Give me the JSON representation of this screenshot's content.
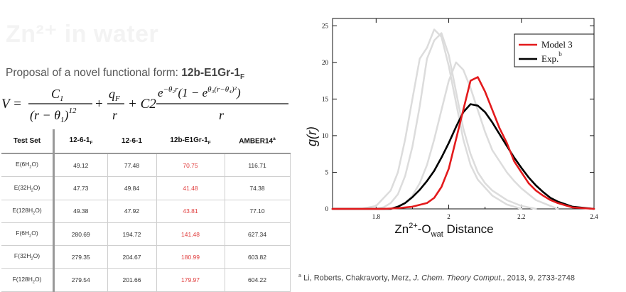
{
  "slide": {
    "title": "Zn²⁺ in water"
  },
  "proposal": {
    "prefix": "Proposal of a novel functional form: ",
    "name": "12b-E1Gr-1",
    "name_sub": "F"
  },
  "equation": {
    "lhs": "V =",
    "t1_num": "C",
    "t1_num_sub": "1",
    "t1_den": "(r − θ",
    "t1_den_sub": "1",
    "t1_den_end": ")",
    "t1_den_exp": "12",
    "plus1": "+",
    "t2_num": "q",
    "t2_num_sub": "F",
    "t2_den": "r",
    "plus2": "+ C2",
    "t3_num_a": "e",
    "t3_num_a_exp": "−θ₂r",
    "t3_num_b": "(1 − e",
    "t3_num_b_exp": "θ₃(r−θ₄)²",
    "t3_num_c": ")",
    "t3_den": "r"
  },
  "table": {
    "headers": [
      "Test Set",
      "12-6-1",
      "12-6-1",
      "12b-E1Gr-1",
      "AMBER14"
    ],
    "header_subs": [
      "",
      "F",
      "",
      "F",
      ""
    ],
    "header_sups": [
      "",
      "",
      "",
      "",
      "a"
    ],
    "rows": [
      {
        "set": "E(6H",
        "sub": "2",
        "tail": "O)",
        "v": [
          "49.12",
          "77.48",
          "70.75",
          "116.71"
        ]
      },
      {
        "set": "E(32H",
        "sub": "2",
        "tail": "O)",
        "v": [
          "47.73",
          "49.84",
          "41.48",
          "74.38"
        ]
      },
      {
        "set": "E(128H",
        "sub": "2",
        "tail": "O)",
        "v": [
          "49.38",
          "47.92",
          "43.81",
          "77.10"
        ]
      },
      {
        "set": "F(6H",
        "sub": "2",
        "tail": "O)",
        "v": [
          "280.69",
          "194.72",
          "141.48",
          "627.34"
        ]
      },
      {
        "set": "F(32H",
        "sub": "2",
        "tail": "O)",
        "v": [
          "279.35",
          "204.67",
          "180.99",
          "603.82"
        ]
      },
      {
        "set": "F(128H",
        "sub": "2",
        "tail": "O)",
        "v": [
          "279.54",
          "201.66",
          "179.97",
          "604.22"
        ]
      }
    ]
  },
  "chart_data": {
    "type": "line",
    "xlabel_parts": {
      "a": "Zn",
      "a_sup": "2+",
      "b": "-O",
      "b_sub": "wat",
      "c": " Distance"
    },
    "ylabel_parts": {
      "a": "g(r)"
    },
    "xlim": [
      1.68,
      2.4
    ],
    "ylim": [
      0,
      26
    ],
    "xticks": [
      "1.8",
      "2",
      "2.2",
      "2.4"
    ],
    "xtick_vals": [
      1.8,
      2.0,
      2.2,
      2.4
    ],
    "yticks": [
      "0",
      "5",
      "10",
      "15",
      "20",
      "25"
    ],
    "ytick_vals": [
      0,
      5,
      10,
      15,
      20,
      25
    ],
    "legend": {
      "position": "top-right",
      "entries": [
        "Model 3",
        "Exp."
      ],
      "exp_sup": "b"
    },
    "series": [
      {
        "name": "Model 3",
        "color": "#e31a1c",
        "x": [
          1.68,
          1.82,
          1.86,
          1.9,
          1.94,
          1.96,
          1.98,
          2.0,
          2.02,
          2.04,
          2.06,
          2.08,
          2.1,
          2.12,
          2.14,
          2.16,
          2.18,
          2.2,
          2.22,
          2.24,
          2.26,
          2.28,
          2.3,
          2.34,
          2.4
        ],
        "y": [
          0,
          0,
          0.1,
          0.3,
          0.8,
          1.5,
          3.0,
          5.5,
          9.5,
          13.5,
          17.5,
          18.0,
          16.0,
          13.5,
          11.0,
          9.0,
          6.5,
          5.0,
          3.5,
          2.5,
          1.8,
          1.2,
          0.8,
          0.2,
          0
        ]
      },
      {
        "name": "Exp.",
        "color": "#000000",
        "x": [
          1.68,
          1.84,
          1.86,
          1.88,
          1.9,
          1.92,
          1.94,
          1.96,
          1.98,
          2.0,
          2.02,
          2.04,
          2.06,
          2.08,
          2.1,
          2.12,
          2.14,
          2.16,
          2.18,
          2.2,
          2.22,
          2.24,
          2.26,
          2.28,
          2.3,
          2.34,
          2.4
        ],
        "y": [
          0,
          0,
          0.3,
          0.8,
          1.6,
          2.6,
          3.8,
          5.2,
          7.0,
          9.0,
          11.2,
          13.2,
          14.3,
          14.1,
          13.2,
          11.8,
          10.2,
          8.6,
          7.0,
          5.6,
          4.3,
          3.2,
          2.3,
          1.5,
          1.0,
          0.3,
          0
        ]
      },
      {
        "name": "",
        "color": "#dcdcdc",
        "x": [
          1.68,
          1.76,
          1.8,
          1.84,
          1.86,
          1.88,
          1.9,
          1.92,
          1.94,
          1.96,
          1.98,
          2.0,
          2.02,
          2.04,
          2.06,
          2.08,
          2.12,
          2.16,
          2.2
        ],
        "y": [
          0,
          0,
          0.4,
          2.5,
          5.0,
          9.5,
          15.0,
          20.5,
          22.0,
          24.5,
          23.5,
          19.5,
          14.5,
          9.5,
          6.0,
          4.0,
          1.8,
          0.6,
          0
        ]
      },
      {
        "name": "",
        "color": "#dcdcdc",
        "x": [
          1.68,
          1.8,
          1.82,
          1.84,
          1.86,
          1.88,
          1.9,
          1.92,
          1.94,
          1.96,
          1.98,
          2.0,
          2.02,
          2.04,
          2.06,
          2.08,
          2.1,
          2.12,
          2.16,
          2.2,
          2.24
        ],
        "y": [
          0,
          0,
          0.2,
          0.8,
          2.0,
          4.5,
          8.5,
          14.0,
          20.5,
          23.0,
          24.0,
          21.0,
          16.0,
          11.0,
          7.5,
          5.0,
          3.5,
          2.5,
          1.2,
          0.4,
          0
        ]
      },
      {
        "name": "",
        "color": "#dcdcdc",
        "x": [
          1.68,
          1.84,
          1.86,
          1.88,
          1.9,
          1.92,
          1.94,
          1.96,
          1.98,
          2.0,
          2.02,
          2.04,
          2.06,
          2.08,
          2.1,
          2.12,
          2.14,
          2.16,
          2.18,
          2.2,
          2.24,
          2.3
        ],
        "y": [
          0,
          0,
          0.3,
          0.8,
          1.8,
          3.5,
          6.0,
          9.5,
          13.5,
          17.5,
          20.0,
          19.0,
          16.5,
          13.5,
          10.5,
          8.0,
          6.5,
          5.0,
          3.8,
          2.8,
          1.2,
          0
        ]
      }
    ]
  },
  "footnote": {
    "sup": "a",
    "authors": " Li, Roberts, Chakravorty, Merz, ",
    "journal": "J. Chem. Theory Comput.",
    "rest": ", 2013, 9, 2733-2748"
  }
}
